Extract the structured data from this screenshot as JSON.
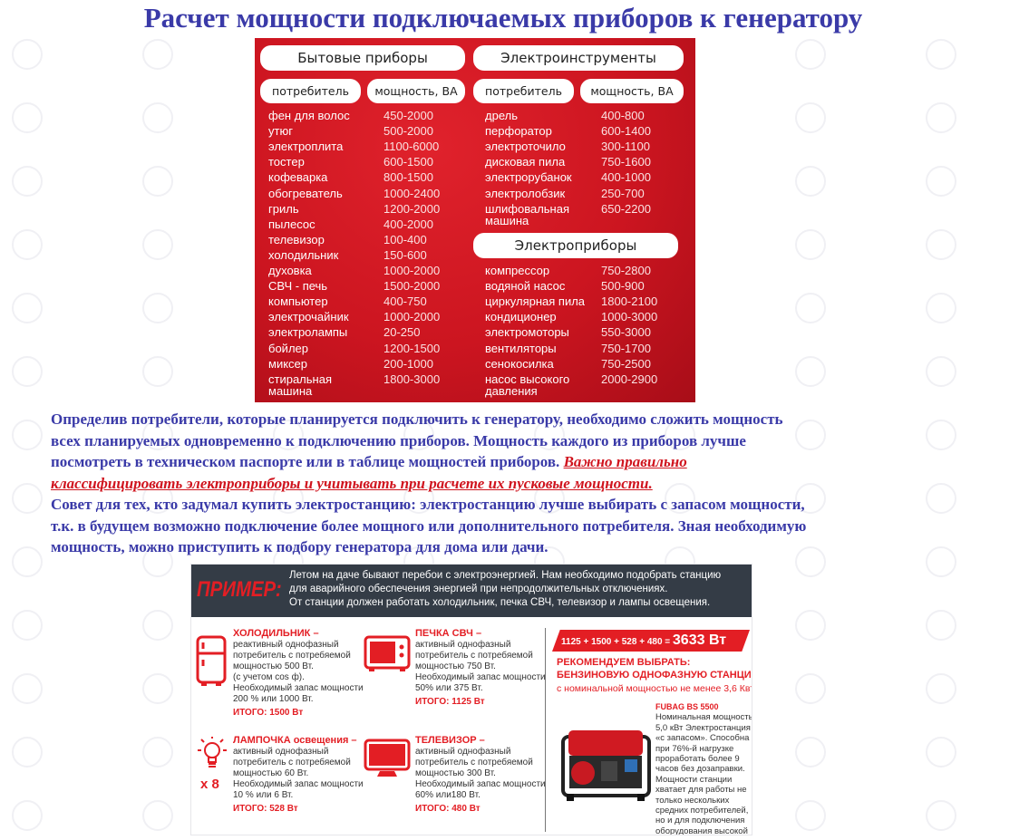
{
  "title": "Расчет мощности подключаемых приборов к генератору",
  "watermark": "ТЕХНОСОЮЗ",
  "table": {
    "household": {
      "heading": "Бытовые приборы",
      "col_consumer": "потребитель",
      "col_power": "мощность, ВА",
      "rows": [
        [
          "фен для волос",
          "450-2000"
        ],
        [
          "утюг",
          "500-2000"
        ],
        [
          "электроплита",
          "1100-6000"
        ],
        [
          "тостер",
          "600-1500"
        ],
        [
          "кофеварка",
          "800-1500"
        ],
        [
          "обогреватель",
          "1000-2400"
        ],
        [
          "гриль",
          "1200-2000"
        ],
        [
          "пылесос",
          "400-2000"
        ],
        [
          "телевизор",
          "100-400"
        ],
        [
          "холодильник",
          "150-600"
        ],
        [
          "духовка",
          "1000-2000"
        ],
        [
          "СВЧ - печь",
          "1500-2000"
        ],
        [
          "компьютер",
          "400-750"
        ],
        [
          "электрочайник",
          "1000-2000"
        ],
        [
          "электролампы",
          "20-250"
        ],
        [
          "бойлер",
          "1200-1500"
        ],
        [
          "миксер",
          "200-1000"
        ],
        [
          "стиральная\nмашина",
          "1800-3000"
        ]
      ]
    },
    "tools": {
      "heading": "Электроинструменты",
      "col_consumer": "потребитель",
      "col_power": "мощность, ВА",
      "rows": [
        [
          "дрель",
          "400-800"
        ],
        [
          "перфоратор",
          "600-1400"
        ],
        [
          "электроточило",
          "300-1100"
        ],
        [
          "дисковая пила",
          "750-1600"
        ],
        [
          "электрорубанок",
          "400-1000"
        ],
        [
          "электролобзик",
          "250-700"
        ],
        [
          "шлифовальная\nмашина",
          "650-2200"
        ]
      ]
    },
    "appliances": {
      "heading": "Электроприборы",
      "rows": [
        [
          "компрессор",
          "750-2800"
        ],
        [
          "водяной насос",
          "500-900"
        ],
        [
          "циркулярная пила",
          "1800-2100"
        ],
        [
          "кондиционер",
          "1000-3000"
        ],
        [
          "электромоторы",
          "550-3000"
        ],
        [
          "вентиляторы",
          "750-1700"
        ],
        [
          "сенокосилка",
          "750-2500"
        ],
        [
          "насос высокого\nдавления",
          "2000-2900"
        ]
      ]
    }
  },
  "paragraph": {
    "line1": "Определив потребители, которые планируется подключить к генератору, необходимо сложить мощность",
    "line2": "всех планируемых одновременно к подключению приборов. Мощность каждого из приборов лучше",
    "line3": "посмотреть в техническом паспорте или в таблице мощностей приборов.",
    "warn1": "Важно правильно",
    "warn2": "классифицировать электроприборы и учитывать при расчете их пусковые мощности.",
    "line5": "Совет для тех, кто задумал купить электростанцию: электростанцию лучше выбирать с запасом мощности,",
    "line6": "т.к. в будущем возможно подключение более мощного или дополнительного потребителя. Зная необходимую",
    "line7": "мощность, можно приступить к подбору генератора для дома или дачи."
  },
  "example": {
    "label": "ПРИМЕР:",
    "intro": [
      "Летом на даче бывают перебои с электроэнергией. Нам необходимо подобрать станцию",
      "для аварийного обеспечения энергией при непродолжительных отключениях.",
      "От станции должен работать холодильник, печка СВЧ, телевизор и лампы освещения."
    ],
    "items": [
      {
        "heading": "ХОЛОДИЛЬНИК –",
        "lines": [
          "реактивный однофазный",
          "потребитель с потребяемой",
          "мощностью 500 Вт.",
          "(с учетом cos ф).",
          "Необходимый запас мощности",
          "200 % или 1000 Вт."
        ],
        "total": "ИТОГО: 1500 Вт",
        "icon": "fridge-icon"
      },
      {
        "heading": "ПЕЧКА СВЧ –",
        "lines": [
          "активный однофазный",
          "потребитель с потребяемой",
          "мощностью 750 Вт.",
          "Необходимый запас мощности",
          "50% или 375 Вт."
        ],
        "total": "ИТОГО: 1125 Вт",
        "icon": "microwave-icon"
      },
      {
        "heading": "ЛАМПОЧКА освещения –",
        "lines": [
          "активный однофазный",
          "потребитель с потребяемой",
          "мощностью 60 Вт.",
          "Необходимый запас мощности",
          "10 % или 6 Вт."
        ],
        "total": "ИТОГО: 528 Вт",
        "icon": "lightbulb-icon",
        "multiplier": "x 8"
      },
      {
        "heading": "ТЕЛЕВИЗОР –",
        "lines": [
          "активный однофазный",
          "потребитель с потребяемой",
          "мощностью 300 Вт.",
          "Необходимый запас мощности",
          "60% или180 Вт."
        ],
        "total": "ИТОГО: 480 Вт",
        "icon": "tv-icon"
      }
    ],
    "sum_formula": "1125 + 1500 + 528 + 480 =",
    "sum_total": "3633 Вт",
    "rec1": "РЕКОМЕНДУЕМ ВЫБРАТЬ:",
    "rec2": "БЕНЗИНОВУЮ ОДНОФАЗНУЮ СТАНЦИЮ",
    "rec3": "с номинальной мощностью не менее 3,6 Квт",
    "model": "FUBAG BS 5500",
    "model_desc": "Номинальная мощность 5,0 кВт Электростанция «с запасом». Способна при 76%-й нагрузке проработать более 9 часов без дозаправки. Мощности станции хватает для работы не только нескольких средних потребителей, но и для подключения оборудования высокой мощности.",
    "accent": "#e31e24"
  }
}
